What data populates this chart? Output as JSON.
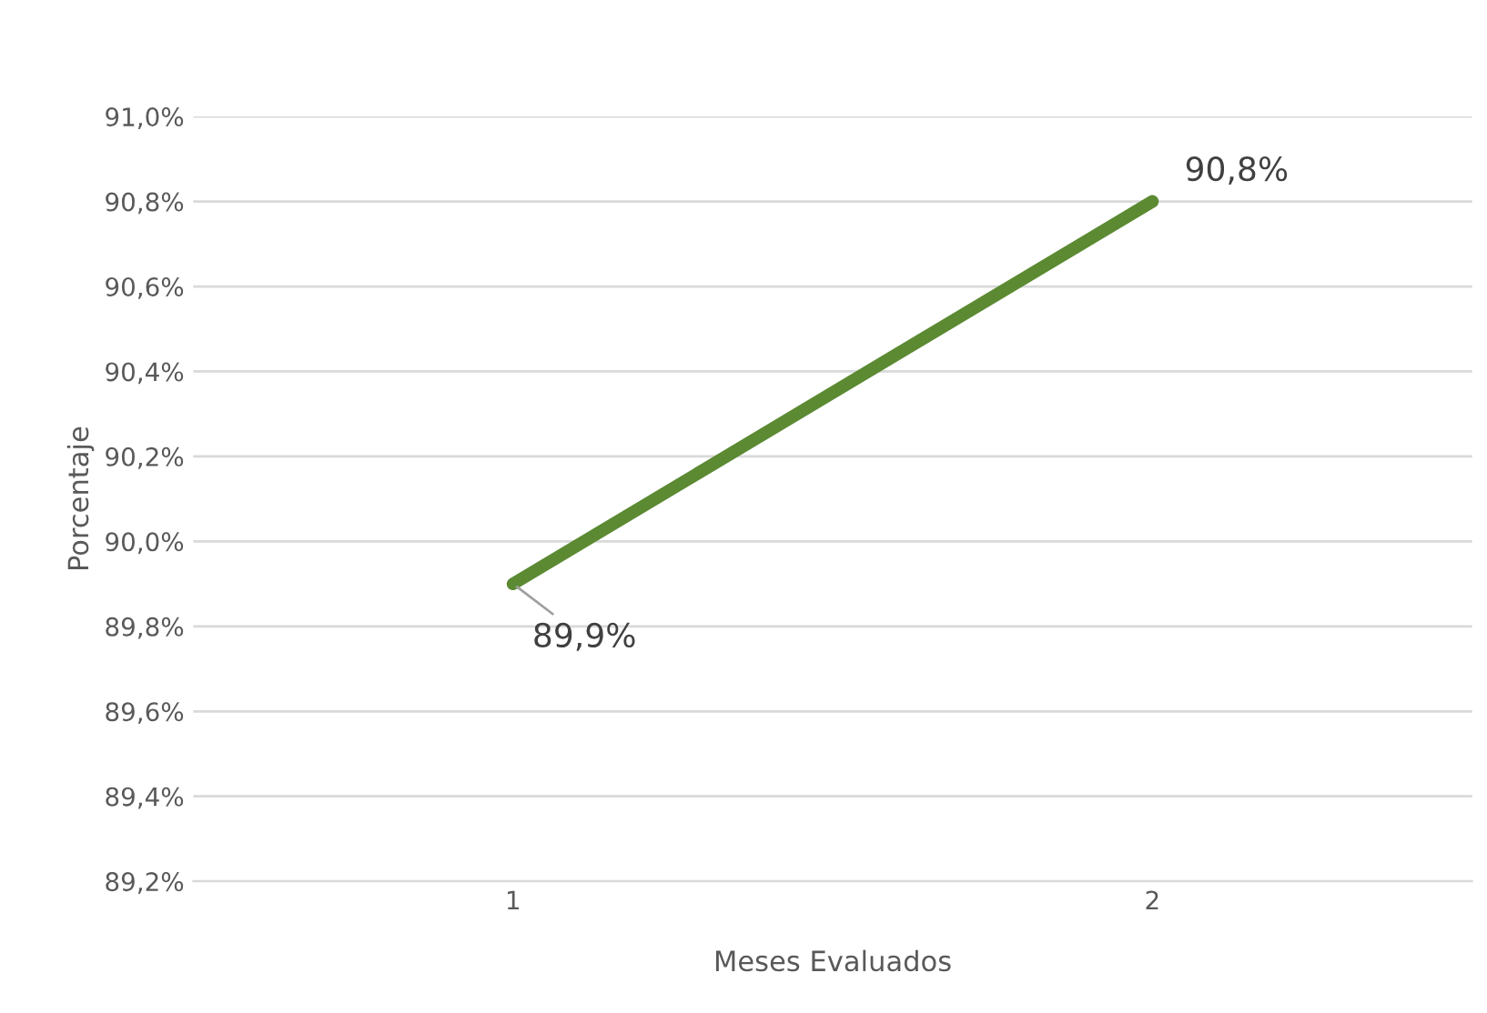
{
  "chart_data": {
    "type": "line",
    "xlabel": "Meses Evaluados",
    "ylabel": "Porcentaje",
    "categories": [
      "1",
      "2"
    ],
    "series": [
      {
        "color": "#5b8a32",
        "values": [
          89.9,
          90.8
        ],
        "value_labels": [
          "89,9%",
          "90,8%"
        ]
      }
    ],
    "ylim": [
      89.2,
      91.0
    ],
    "yticks": [
      {
        "value": 89.2,
        "label": "89,2%"
      },
      {
        "value": 89.4,
        "label": "89,4%"
      },
      {
        "value": 89.6,
        "label": "89,6%"
      },
      {
        "value": 89.8,
        "label": "89,8%"
      },
      {
        "value": 90.0,
        "label": "90,0%"
      },
      {
        "value": 90.2,
        "label": "90,2%"
      },
      {
        "value": 90.4,
        "label": "90,4%"
      },
      {
        "value": 90.6,
        "label": "90,6%"
      },
      {
        "value": 90.8,
        "label": "90,8%"
      },
      {
        "value": 91.0,
        "label": "91,0%"
      }
    ],
    "grid": "y",
    "marker": "none",
    "line_style": "solid",
    "legend": false
  }
}
